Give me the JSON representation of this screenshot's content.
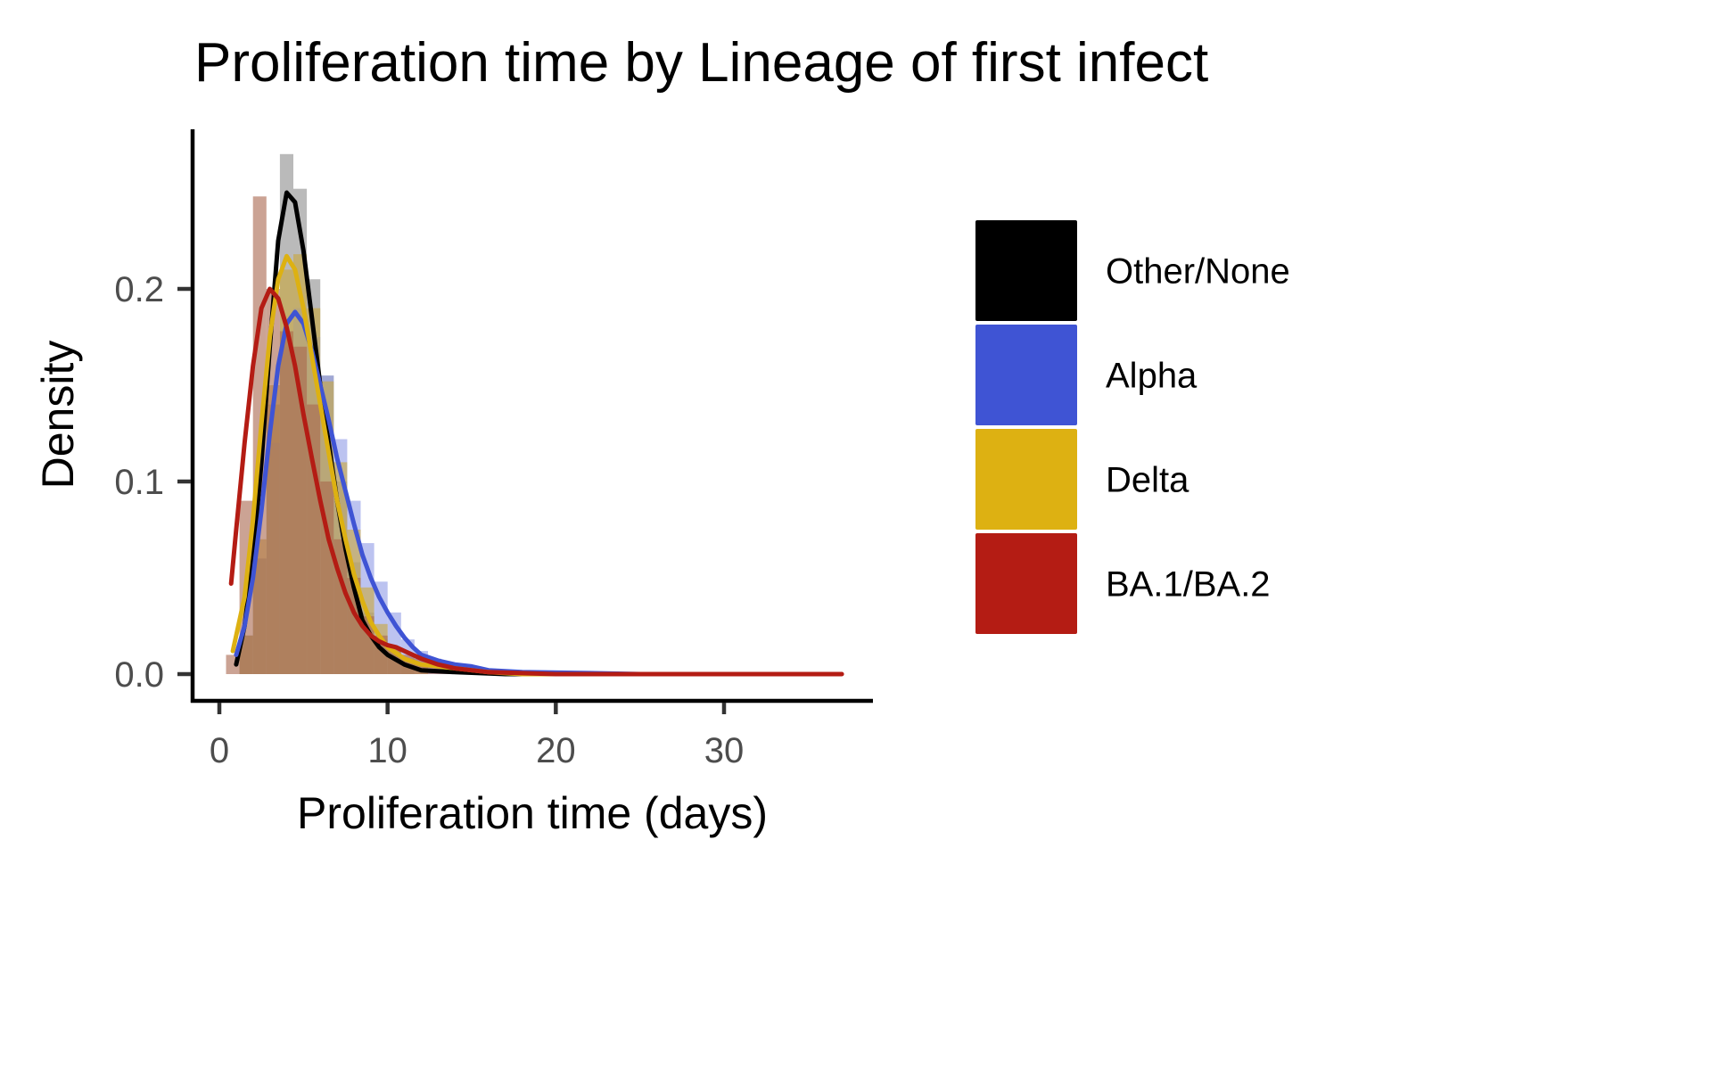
{
  "chart_data": {
    "type": "histogram-density",
    "title": "Proliferation time by Lineage of first infect",
    "xlabel": "Proliferation time (days)",
    "ylabel": "Density",
    "xlim": [
      -1.5,
      39
    ],
    "ylim": [
      -0.014,
      0.283
    ],
    "x_ticks": [
      0,
      10,
      20,
      30
    ],
    "x_tick_labels": [
      "0",
      "10",
      "20",
      "30"
    ],
    "y_ticks": [
      0.0,
      0.1,
      0.2
    ],
    "y_tick_labels": [
      "0.0",
      "0.1",
      "0.2"
    ],
    "grid": false,
    "legend_position": "right",
    "bin_width": 0.8,
    "series": [
      {
        "name": "Other/None",
        "color": "#000000",
        "hist_color": "#8c8c8c",
        "hist_bins": [
          [
            1.2,
            0.02
          ],
          [
            2.0,
            0.06
          ],
          [
            2.8,
            0.14
          ],
          [
            3.6,
            0.27
          ],
          [
            4.4,
            0.252
          ],
          [
            5.2,
            0.205
          ],
          [
            6.0,
            0.155
          ],
          [
            6.8,
            0.1
          ],
          [
            7.6,
            0.058
          ],
          [
            8.4,
            0.032
          ],
          [
            9.2,
            0.018
          ],
          [
            10.0,
            0.01
          ],
          [
            10.8,
            0.005
          ]
        ],
        "density": [
          [
            1.0,
            0.005
          ],
          [
            1.5,
            0.025
          ],
          [
            2.0,
            0.06
          ],
          [
            2.5,
            0.11
          ],
          [
            3.0,
            0.17
          ],
          [
            3.5,
            0.225
          ],
          [
            4.0,
            0.25
          ],
          [
            4.5,
            0.245
          ],
          [
            5.0,
            0.22
          ],
          [
            5.5,
            0.185
          ],
          [
            6.0,
            0.15
          ],
          [
            6.5,
            0.12
          ],
          [
            7.0,
            0.09
          ],
          [
            7.5,
            0.065
          ],
          [
            8.0,
            0.045
          ],
          [
            8.5,
            0.028
          ],
          [
            9.0,
            0.02
          ],
          [
            9.5,
            0.014
          ],
          [
            10.0,
            0.01
          ],
          [
            11.0,
            0.005
          ],
          [
            12.0,
            0.002
          ],
          [
            14.0,
            0.001
          ],
          [
            17.0,
            0.0
          ],
          [
            24.0,
            0.0
          ]
        ]
      },
      {
        "name": "Alpha",
        "color": "#3f54d4",
        "hist_color": "#8f9be6",
        "hist_bins": [
          [
            1.2,
            0.02
          ],
          [
            2.0,
            0.06
          ],
          [
            2.8,
            0.12
          ],
          [
            3.6,
            0.17
          ],
          [
            4.4,
            0.19
          ],
          [
            5.2,
            0.175
          ],
          [
            6.0,
            0.155
          ],
          [
            6.8,
            0.122
          ],
          [
            7.6,
            0.09
          ],
          [
            8.4,
            0.068
          ],
          [
            9.2,
            0.048
          ],
          [
            10.0,
            0.032
          ],
          [
            10.8,
            0.018
          ],
          [
            11.6,
            0.012
          ],
          [
            12.4,
            0.008
          ],
          [
            13.2,
            0.006
          ],
          [
            14.0,
            0.005
          ],
          [
            14.8,
            0.004
          ]
        ],
        "density": [
          [
            1.0,
            0.01
          ],
          [
            1.5,
            0.025
          ],
          [
            2.0,
            0.05
          ],
          [
            2.5,
            0.085
          ],
          [
            3.0,
            0.125
          ],
          [
            3.5,
            0.16
          ],
          [
            4.0,
            0.182
          ],
          [
            4.5,
            0.188
          ],
          [
            5.0,
            0.182
          ],
          [
            5.5,
            0.168
          ],
          [
            6.0,
            0.15
          ],
          [
            6.5,
            0.132
          ],
          [
            7.0,
            0.112
          ],
          [
            7.5,
            0.095
          ],
          [
            8.0,
            0.078
          ],
          [
            8.5,
            0.062
          ],
          [
            9.0,
            0.05
          ],
          [
            9.5,
            0.04
          ],
          [
            10.0,
            0.032
          ],
          [
            10.5,
            0.025
          ],
          [
            11.0,
            0.019
          ],
          [
            11.5,
            0.014
          ],
          [
            12.0,
            0.01
          ],
          [
            13.0,
            0.007
          ],
          [
            14.0,
            0.005
          ],
          [
            15.0,
            0.004
          ],
          [
            16.0,
            0.002
          ],
          [
            18.0,
            0.001
          ],
          [
            22.0,
            0.0005
          ],
          [
            25.0,
            0.0
          ],
          [
            30.0,
            0.0
          ]
        ]
      },
      {
        "name": "Delta",
        "color": "#ddb112",
        "hist_color": "#c9a73b",
        "hist_bins": [
          [
            1.2,
            0.02
          ],
          [
            2.0,
            0.07
          ],
          [
            2.8,
            0.15
          ],
          [
            3.6,
            0.21
          ],
          [
            4.4,
            0.218
          ],
          [
            5.2,
            0.19
          ],
          [
            6.0,
            0.152
          ],
          [
            6.8,
            0.11
          ],
          [
            7.6,
            0.075
          ],
          [
            8.4,
            0.045
          ],
          [
            9.2,
            0.026
          ],
          [
            10.0,
            0.014
          ],
          [
            10.8,
            0.008
          ],
          [
            11.6,
            0.005
          ]
        ],
        "density": [
          [
            0.8,
            0.012
          ],
          [
            1.5,
            0.04
          ],
          [
            2.0,
            0.08
          ],
          [
            2.5,
            0.13
          ],
          [
            3.0,
            0.175
          ],
          [
            3.5,
            0.205
          ],
          [
            4.0,
            0.217
          ],
          [
            4.5,
            0.21
          ],
          [
            5.0,
            0.19
          ],
          [
            5.5,
            0.165
          ],
          [
            6.0,
            0.14
          ],
          [
            6.5,
            0.115
          ],
          [
            7.0,
            0.09
          ],
          [
            7.5,
            0.07
          ],
          [
            8.0,
            0.052
          ],
          [
            8.5,
            0.038
          ],
          [
            9.0,
            0.027
          ],
          [
            9.5,
            0.02
          ],
          [
            10.0,
            0.014
          ],
          [
            11.0,
            0.008
          ],
          [
            12.0,
            0.005
          ],
          [
            14.0,
            0.003
          ],
          [
            16.0,
            0.001
          ],
          [
            18.0,
            0.0
          ],
          [
            24.0,
            0.0
          ]
        ]
      },
      {
        "name": "BA.1/BA.2",
        "color": "#b41c14",
        "hist_color": "#a8654c",
        "hist_bins": [
          [
            0.4,
            0.01
          ],
          [
            1.2,
            0.09
          ],
          [
            2.0,
            0.248
          ],
          [
            2.8,
            0.2
          ],
          [
            3.6,
            0.178
          ],
          [
            4.4,
            0.17
          ],
          [
            5.2,
            0.14
          ],
          [
            6.0,
            0.1
          ],
          [
            6.8,
            0.07
          ],
          [
            7.6,
            0.05
          ],
          [
            8.4,
            0.03
          ],
          [
            9.2,
            0.02
          ],
          [
            10.0,
            0.014
          ],
          [
            10.8,
            0.01
          ],
          [
            11.6,
            0.008
          ],
          [
            12.4,
            0.006
          ],
          [
            13.2,
            0.004
          ]
        ],
        "density": [
          [
            0.7,
            0.047
          ],
          [
            1.0,
            0.075
          ],
          [
            1.5,
            0.12
          ],
          [
            2.0,
            0.16
          ],
          [
            2.5,
            0.19
          ],
          [
            3.0,
            0.2
          ],
          [
            3.5,
            0.195
          ],
          [
            4.0,
            0.18
          ],
          [
            4.5,
            0.16
          ],
          [
            5.0,
            0.135
          ],
          [
            5.5,
            0.112
          ],
          [
            6.0,
            0.09
          ],
          [
            6.5,
            0.07
          ],
          [
            7.0,
            0.055
          ],
          [
            7.5,
            0.042
          ],
          [
            8.0,
            0.032
          ],
          [
            8.5,
            0.025
          ],
          [
            9.0,
            0.02
          ],
          [
            9.5,
            0.017
          ],
          [
            10.0,
            0.015
          ],
          [
            10.5,
            0.014
          ],
          [
            11.0,
            0.012
          ],
          [
            12.0,
            0.008
          ],
          [
            13.0,
            0.005
          ],
          [
            14.0,
            0.003
          ],
          [
            16.0,
            0.001
          ],
          [
            20.0,
            0.0
          ],
          [
            30.0,
            0.0
          ],
          [
            37.0,
            0.0
          ]
        ]
      }
    ]
  }
}
